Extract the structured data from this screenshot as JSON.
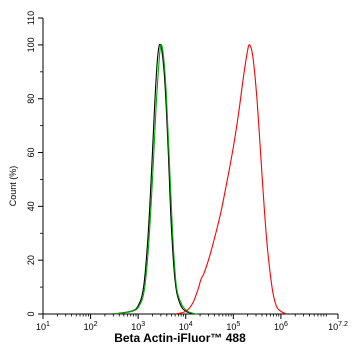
{
  "chart_data": {
    "type": "line",
    "xlabel": "Beta Actin-iFluor™ 488",
    "ylabel": "Count  (%)",
    "x_scale": "log",
    "xlim": [
      10,
      15848932
    ],
    "ylim": [
      0,
      110
    ],
    "x_ticks": [
      {
        "value": 10,
        "base": "10",
        "exp": "1"
      },
      {
        "value": 100,
        "base": "10",
        "exp": "2"
      },
      {
        "value": 1000,
        "base": "10",
        "exp": "3"
      },
      {
        "value": 10000,
        "base": "10",
        "exp": "4"
      },
      {
        "value": 100000,
        "base": "10",
        "exp": "5"
      },
      {
        "value": 1000000,
        "base": "10",
        "exp": "6"
      },
      {
        "value": 15848932,
        "base": "10",
        "exp": "7.2"
      }
    ],
    "y_ticks": [
      0,
      20,
      40,
      60,
      80,
      100,
      110
    ],
    "grid": false,
    "series": [
      {
        "color": "#000000",
        "points": [
          [
            300,
            0
          ],
          [
            700,
            1
          ],
          [
            1000,
            3
          ],
          [
            1300,
            10
          ],
          [
            1600,
            28
          ],
          [
            1900,
            52
          ],
          [
            2200,
            76
          ],
          [
            2500,
            93
          ],
          [
            2800,
            100
          ],
          [
            3200,
            97
          ],
          [
            3700,
            84
          ],
          [
            4300,
            60
          ],
          [
            5000,
            32
          ],
          [
            6000,
            12
          ],
          [
            7500,
            4
          ],
          [
            10000,
            1
          ],
          [
            16000,
            0
          ]
        ]
      },
      {
        "color": "#00aa00",
        "points": [
          [
            320,
            0
          ],
          [
            750,
            1
          ],
          [
            1050,
            3
          ],
          [
            1350,
            9
          ],
          [
            1650,
            25
          ],
          [
            2000,
            50
          ],
          [
            2350,
            75
          ],
          [
            2700,
            92
          ],
          [
            3000,
            100
          ],
          [
            3400,
            96
          ],
          [
            3900,
            82
          ],
          [
            4500,
            58
          ],
          [
            5300,
            30
          ],
          [
            6300,
            11
          ],
          [
            8000,
            4
          ],
          [
            11000,
            1
          ],
          [
            17000,
            0
          ]
        ]
      },
      {
        "color": "#ff0000",
        "points": [
          [
            6000,
            0
          ],
          [
            10000,
            1
          ],
          [
            14000,
            4
          ],
          [
            18000,
            9
          ],
          [
            21000,
            13
          ],
          [
            24000,
            15
          ],
          [
            30000,
            20
          ],
          [
            40000,
            28
          ],
          [
            55000,
            38
          ],
          [
            75000,
            50
          ],
          [
            100000,
            62
          ],
          [
            130000,
            75
          ],
          [
            160000,
            87
          ],
          [
            195000,
            97
          ],
          [
            220000,
            100
          ],
          [
            260000,
            95
          ],
          [
            320000,
            78
          ],
          [
            400000,
            52
          ],
          [
            500000,
            28
          ],
          [
            650000,
            10
          ],
          [
            800000,
            3
          ],
          [
            1000000,
            1
          ],
          [
            1300000,
            0
          ]
        ]
      }
    ]
  }
}
